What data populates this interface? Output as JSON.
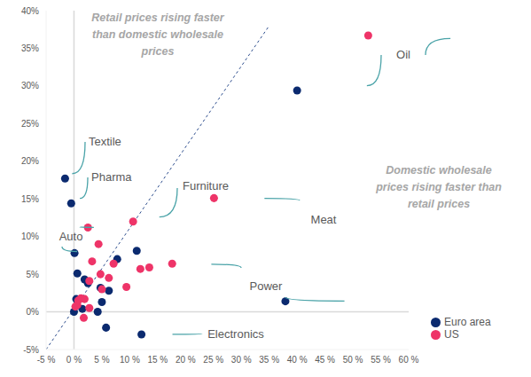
{
  "chart_data": {
    "type": "scatter",
    "region_labels": [
      {
        "lines": [
          "Retail prices rising faster",
          "than domestic wholesale",
          "prices"
        ]
      },
      {
        "lines": [
          "Domestic wholesale",
          "prices rising faster than",
          "retail prices"
        ]
      }
    ],
    "series": [
      {
        "name": "Euro area",
        "color": "#0b2a6f",
        "marker": "circle",
        "x": [
          40,
          37.9,
          -1.6,
          -0.5,
          12.1,
          0.1,
          0.6,
          0.4,
          0,
          1.9,
          2.5,
          4.25,
          4.75,
          5,
          6.25,
          5.75,
          7.75,
          11.25,
          1.5
        ],
        "y": [
          29.4,
          1.4,
          17.7,
          14.4,
          -3.0,
          7.8,
          5.1,
          1.7,
          0,
          4.3,
          3.8,
          0,
          3.2,
          1.3,
          2.8,
          -2.1,
          7.0,
          8.1,
          0.4
        ],
        "labels": [
          "Oil",
          "Power",
          "Textile",
          "Pharma",
          "Electronics",
          "Auto",
          null,
          null,
          null,
          null,
          null,
          null,
          null,
          null,
          null,
          null,
          null,
          null,
          null
        ]
      },
      {
        "name": "US",
        "color": "#ee3468",
        "marker": "circle",
        "x": [
          52.75,
          25.1,
          10.6,
          2.5,
          17.6,
          4.4,
          3.25,
          2.75,
          4.75,
          7.1,
          6.25,
          5,
          9.4,
          11.9,
          13.5,
          0.6,
          1.25,
          0.25,
          1.9,
          2.75,
          1.75,
          0.75
        ],
        "y": [
          36.7,
          15.1,
          12.0,
          11.2,
          6.4,
          9.0,
          6.7,
          4.1,
          5.0,
          6.4,
          4.5,
          3.0,
          3.3,
          5.7,
          5.9,
          0.9,
          1.8,
          0.7,
          1.7,
          0.5,
          -0.8,
          1.5
        ],
        "labels": [
          "Oil",
          "Meat",
          "Furniture",
          "Auto",
          "Power",
          null,
          null,
          null,
          null,
          null,
          null,
          null,
          null,
          null,
          null,
          null,
          null,
          null,
          null,
          null,
          null,
          null
        ]
      }
    ],
    "reference_line": {
      "x": [
        -5,
        35
      ],
      "y": [
        -5,
        38
      ],
      "line_style": "dashed",
      "color": "#2f4f8f"
    },
    "axis_lines": {
      "x": 0,
      "y": 0
    },
    "xlim": [
      -5,
      60
    ],
    "xticks": [
      {
        "value": -5,
        "label": "-5 %"
      },
      {
        "value": 0,
        "label": "0 %"
      },
      {
        "value": 5,
        "label": "5 %"
      },
      {
        "value": 10,
        "label": "10 %"
      },
      {
        "value": 15,
        "label": "15 %"
      },
      {
        "value": 20,
        "label": "20 %"
      },
      {
        "value": 25,
        "label": "25 %"
      },
      {
        "value": 30,
        "label": "30 %"
      },
      {
        "value": 35,
        "label": "35 %"
      },
      {
        "value": 40,
        "label": "40 %"
      },
      {
        "value": 45,
        "label": "45 %"
      },
      {
        "value": 50,
        "label": "50 %"
      },
      {
        "value": 55,
        "label": "55 %"
      },
      {
        "value": 60,
        "label": "60 %"
      }
    ],
    "ylim": [
      -5,
      40
    ],
    "yticks": [
      {
        "value": -5,
        "label": "-5%"
      },
      {
        "value": 0,
        "label": "0%"
      },
      {
        "value": 5,
        "label": "5%"
      },
      {
        "value": 10,
        "label": "10%"
      },
      {
        "value": 15,
        "label": "15%"
      },
      {
        "value": 20,
        "label": "20%"
      },
      {
        "value": 25,
        "label": "25%"
      },
      {
        "value": 30,
        "label": "30%"
      },
      {
        "value": 35,
        "label": "35%"
      },
      {
        "value": 40,
        "label": "40%"
      }
    ],
    "grid": false,
    "legend": "lower right"
  }
}
